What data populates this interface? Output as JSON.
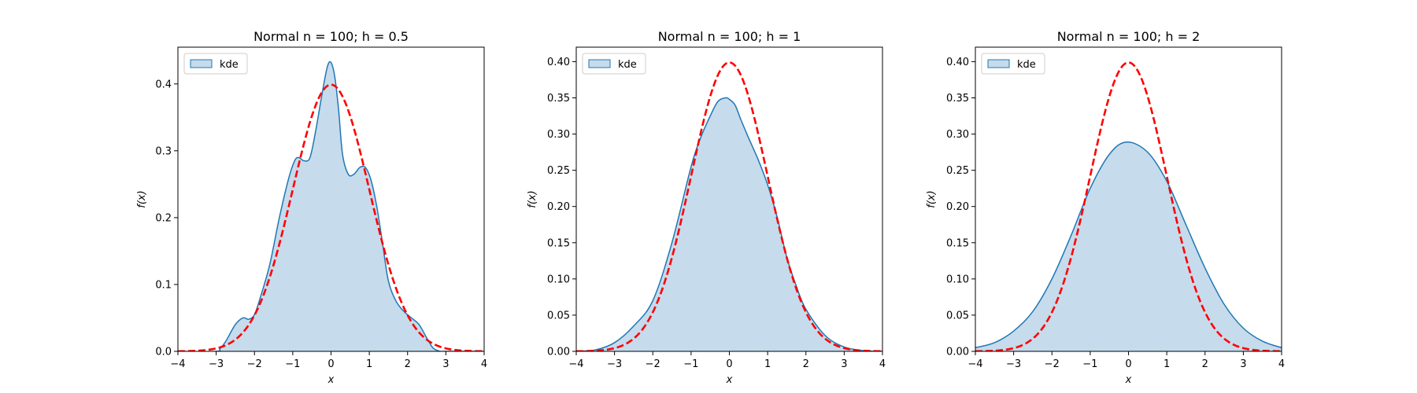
{
  "chart_data": [
    {
      "type": "area",
      "title": "Normal n = 100; h = 0.5",
      "xlabel": "x",
      "ylabel": "f(x)",
      "xlim": [
        -4,
        4
      ],
      "ylim": [
        0,
        0.455
      ],
      "xticks": [
        -4,
        -3,
        -2,
        -1,
        0,
        1,
        2,
        3,
        4
      ],
      "xtick_labels": [
        "−4",
        "−3",
        "−2",
        "−1",
        "0",
        "1",
        "2",
        "3",
        "4"
      ],
      "yticks": [
        0,
        0.1,
        0.2,
        0.3,
        0.4
      ],
      "ytick_labels": [
        "0.0",
        "0.1",
        "0.2",
        "0.3",
        "0.4"
      ],
      "grid": false,
      "legend_position": "top-left",
      "series": [
        {
          "name": "kde",
          "style": "filled-line",
          "color": "#1f77b4",
          "fill": "#c6dbec",
          "x": [
            -4.0,
            -3.0,
            -2.9,
            -2.75,
            -2.5,
            -2.3,
            -2.15,
            -2.0,
            -1.85,
            -1.6,
            -1.35,
            -1.1,
            -0.95,
            -0.85,
            -0.7,
            -0.55,
            -0.4,
            -0.25,
            -0.1,
            0.0,
            0.1,
            0.2,
            0.3,
            0.45,
            0.6,
            0.75,
            0.9,
            1.05,
            1.2,
            1.35,
            1.5,
            1.7,
            1.9,
            2.1,
            2.3,
            2.5,
            2.65,
            2.75,
            2.85,
            3.0,
            4.0
          ],
          "y": [
            0.0,
            0.0,
            0.004,
            0.015,
            0.04,
            0.05,
            0.048,
            0.055,
            0.08,
            0.13,
            0.2,
            0.26,
            0.285,
            0.29,
            0.285,
            0.29,
            0.33,
            0.38,
            0.425,
            0.432,
            0.41,
            0.36,
            0.295,
            0.265,
            0.265,
            0.275,
            0.275,
            0.255,
            0.215,
            0.16,
            0.105,
            0.075,
            0.06,
            0.05,
            0.04,
            0.02,
            0.006,
            0.002,
            0.0,
            0.0,
            0.0
          ]
        },
        {
          "name": "",
          "style": "dashed-line",
          "color": "#ff0000",
          "function": "normal_pdf",
          "mu": 0,
          "sigma": 1
        }
      ]
    },
    {
      "type": "area",
      "title": "Normal n = 100; h = 1",
      "xlabel": "x",
      "ylabel": "f(x)",
      "xlim": [
        -4,
        4
      ],
      "ylim": [
        0,
        0.42
      ],
      "xticks": [
        -4,
        -3,
        -2,
        -1,
        0,
        1,
        2,
        3,
        4
      ],
      "xtick_labels": [
        "−4",
        "−3",
        "−2",
        "−1",
        "0",
        "1",
        "2",
        "3",
        "4"
      ],
      "yticks": [
        0,
        0.05,
        0.1,
        0.15,
        0.2,
        0.25,
        0.3,
        0.35,
        0.4
      ],
      "ytick_labels": [
        "0.00",
        "0.05",
        "0.10",
        "0.15",
        "0.20",
        "0.25",
        "0.30",
        "0.35",
        "0.40"
      ],
      "grid": false,
      "legend_position": "top-left",
      "series": [
        {
          "name": "kde",
          "style": "filled-line",
          "color": "#1f77b4",
          "fill": "#c6dbec",
          "x": [
            -4.0,
            -3.5,
            -3.0,
            -2.5,
            -2.0,
            -1.5,
            -1.0,
            -0.75,
            -0.5,
            -0.3,
            -0.1,
            0.0,
            0.15,
            0.3,
            0.5,
            0.75,
            1.0,
            1.25,
            1.5,
            1.75,
            2.0,
            2.5,
            3.0,
            3.5,
            4.0
          ],
          "y": [
            0.0,
            0.002,
            0.012,
            0.035,
            0.07,
            0.15,
            0.255,
            0.295,
            0.325,
            0.345,
            0.35,
            0.348,
            0.34,
            0.32,
            0.295,
            0.265,
            0.23,
            0.185,
            0.13,
            0.09,
            0.058,
            0.022,
            0.006,
            0.001,
            0.0
          ]
        },
        {
          "name": "",
          "style": "dashed-line",
          "color": "#ff0000",
          "function": "normal_pdf",
          "mu": 0,
          "sigma": 1
        }
      ]
    },
    {
      "type": "area",
      "title": "Normal n = 100; h = 2",
      "xlabel": "x",
      "ylabel": "f(x)",
      "xlim": [
        -4,
        4
      ],
      "ylim": [
        0,
        0.42
      ],
      "xticks": [
        -4,
        -3,
        -2,
        -1,
        0,
        1,
        2,
        3,
        4
      ],
      "xtick_labels": [
        "−4",
        "−3",
        "−2",
        "−1",
        "0",
        "1",
        "2",
        "3",
        "4"
      ],
      "yticks": [
        0,
        0.05,
        0.1,
        0.15,
        0.2,
        0.25,
        0.3,
        0.35,
        0.4
      ],
      "ytick_labels": [
        "0.00",
        "0.05",
        "0.10",
        "0.15",
        "0.20",
        "0.25",
        "0.30",
        "0.35",
        "0.40"
      ],
      "grid": false,
      "legend_position": "top-left",
      "series": [
        {
          "name": "kde",
          "style": "filled-line",
          "color": "#1f77b4",
          "fill": "#c6dbec",
          "x": [
            -4.0,
            -3.5,
            -3.0,
            -2.5,
            -2.0,
            -1.5,
            -1.0,
            -0.5,
            -0.05,
            0.5,
            1.0,
            1.5,
            2.0,
            2.5,
            3.0,
            3.5,
            4.0
          ],
          "y": [
            0.005,
            0.012,
            0.028,
            0.055,
            0.1,
            0.16,
            0.225,
            0.272,
            0.289,
            0.275,
            0.235,
            0.175,
            0.115,
            0.065,
            0.032,
            0.014,
            0.005
          ]
        },
        {
          "name": "",
          "style": "dashed-line",
          "color": "#ff0000",
          "function": "normal_pdf",
          "mu": 0,
          "sigma": 1
        }
      ]
    }
  ]
}
